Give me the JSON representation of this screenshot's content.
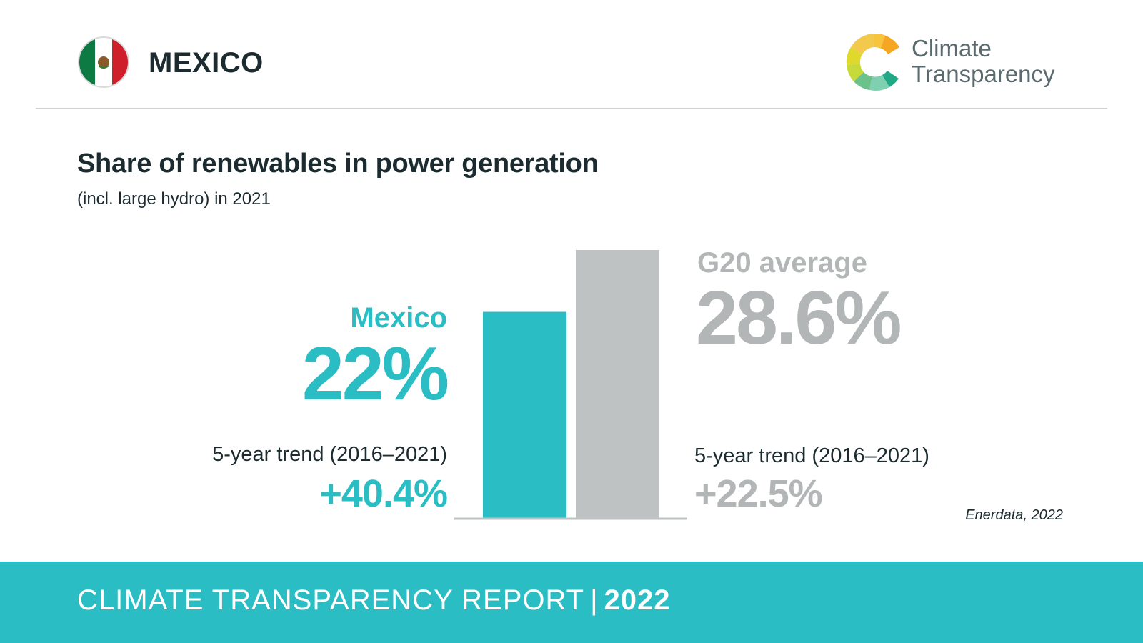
{
  "header": {
    "country": "MEXICO",
    "logo_line1": "Climate",
    "logo_line2": "Transparency"
  },
  "chart_data": {
    "type": "bar",
    "title": "Share of renewables in power generation",
    "subtitle": "(incl. large hydro) in 2021",
    "categories": [
      "Mexico",
      "G20 average"
    ],
    "values": [
      22,
      28.6
    ],
    "value_labels": [
      "22%",
      "28.6%"
    ],
    "ylim": [
      0,
      28.6
    ],
    "colors": [
      "#2bbdc4",
      "#bfc2c2"
    ],
    "trend_label": "5-year trend (2016–2021)",
    "trends": [
      "+40.4%",
      "+22.5%"
    ],
    "source": "Enerdata, 2022"
  },
  "footer": {
    "report": "CLIMATE TRANSPARENCY REPORT",
    "separator": "|",
    "year": "2022"
  }
}
